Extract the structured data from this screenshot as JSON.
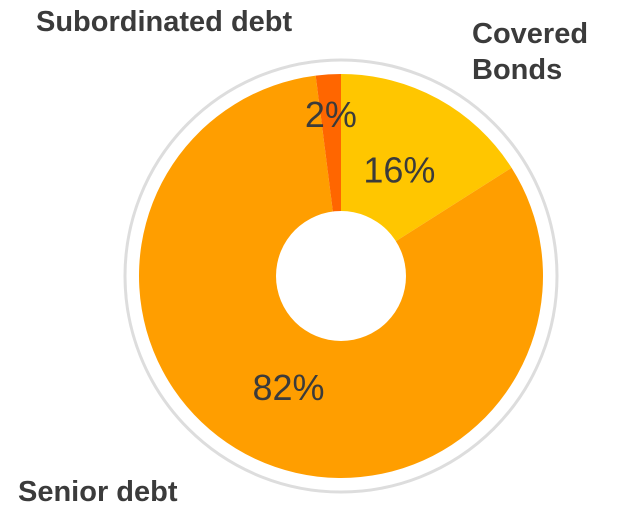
{
  "chart_data": {
    "type": "pie",
    "title": "",
    "slices": [
      {
        "label": "Covered Bonds",
        "label_lines": [
          "Covered",
          "Bonds"
        ],
        "value": 16,
        "value_label": "16%",
        "color": "#FFC600"
      },
      {
        "label": "Senior debt",
        "label_lines": [
          "Senior debt"
        ],
        "value": 82,
        "value_label": "82%",
        "color": "#FF9E00"
      },
      {
        "label": "Subordinated debt",
        "label_lines": [
          "Subordinated debt"
        ],
        "value": 2,
        "value_label": "2%",
        "color": "#FF6600"
      }
    ],
    "donut_hole": true,
    "legend": "none",
    "colors": {
      "background": "#FFFFFF",
      "outer_ring": "#DDDDDD",
      "label_text": "#3B3B3B",
      "value_text": "#3B3B3B"
    }
  }
}
